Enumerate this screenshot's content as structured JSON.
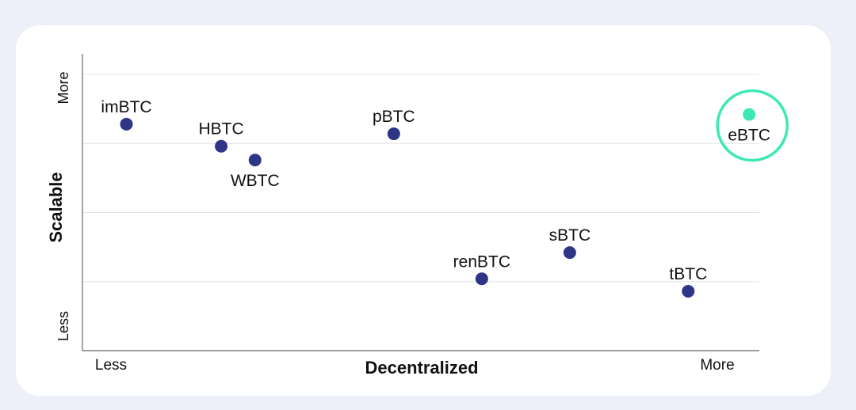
{
  "chart_data": {
    "type": "scatter",
    "title": "",
    "xlabel": "Decentralized",
    "ylabel": "Scalable",
    "x_tick_labels": {
      "min": "Less",
      "max": "More"
    },
    "y_tick_labels": {
      "min": "Less",
      "max": "More"
    },
    "xlim": [
      0,
      10
    ],
    "ylim": [
      0,
      10
    ],
    "grid": "horizontal",
    "points": [
      {
        "label": "imBTC",
        "x": 0.65,
        "y": 8.2,
        "label_pos": "above"
      },
      {
        "label": "HBTC",
        "x": 2.05,
        "y": 7.4,
        "label_pos": "above"
      },
      {
        "label": "WBTC",
        "x": 2.55,
        "y": 6.9,
        "label_pos": "below"
      },
      {
        "label": "pBTC",
        "x": 4.6,
        "y": 7.85,
        "label_pos": "above"
      },
      {
        "label": "renBTC",
        "x": 5.9,
        "y": 2.6,
        "label_pos": "above"
      },
      {
        "label": "sBTC",
        "x": 7.2,
        "y": 3.55,
        "label_pos": "above"
      },
      {
        "label": "tBTC",
        "x": 8.95,
        "y": 2.15,
        "label_pos": "above"
      },
      {
        "label": "eBTC",
        "x": 9.85,
        "y": 8.55,
        "label_pos": "below",
        "highlight": true
      }
    ],
    "colors": {
      "point": "#2e3587",
      "highlight": "#3ee8b5",
      "grid": "#e4e4e4",
      "axis": "#666666",
      "text": "#111111"
    }
  }
}
